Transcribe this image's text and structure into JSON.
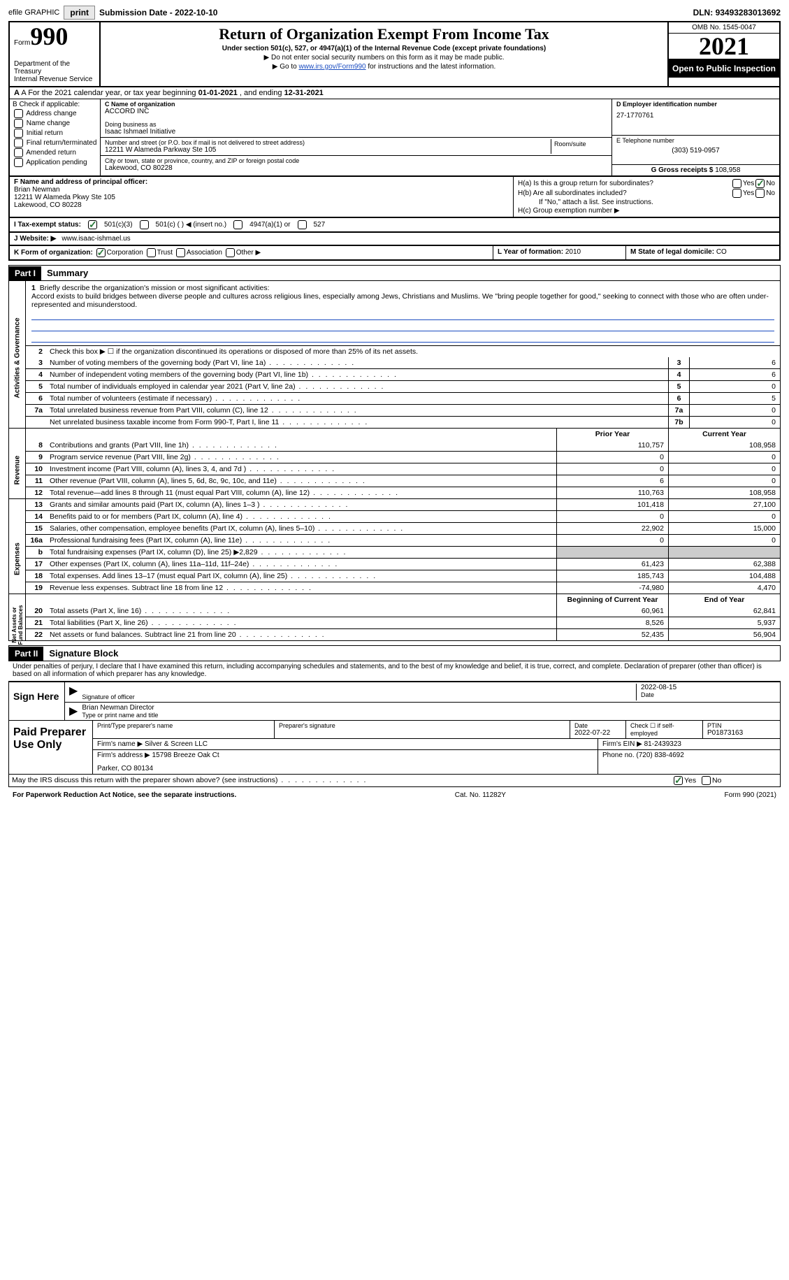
{
  "topbar": {
    "efile": "efile GRAPHIC",
    "print": "print",
    "sub_date_lbl": "Submission Date - ",
    "sub_date": "2022-10-10",
    "dln_lbl": "DLN: ",
    "dln": "93493283013692"
  },
  "header": {
    "form_lbl": "Form",
    "form_num": "990",
    "dept": "Department of the Treasury\nInternal Revenue Service",
    "title": "Return of Organization Exempt From Income Tax",
    "subtitle": "Under section 501(c), 527, or 4947(a)(1) of the Internal Revenue Code (except private foundations)",
    "note1": "▶ Do not enter social security numbers on this form as it may be made public.",
    "note2_pre": "▶ Go to ",
    "note2_link": "www.irs.gov/Form990",
    "note2_post": " for instructions and the latest information.",
    "omb": "OMB No. 1545-0047",
    "year": "2021",
    "open": "Open to Public Inspection"
  },
  "rowA": {
    "text_pre": "A For the 2021 calendar year, or tax year beginning ",
    "begin": "01-01-2021",
    "mid": "  , and ending ",
    "end": "12-31-2021"
  },
  "colB": {
    "hdr": "B Check if applicable:",
    "opts": [
      "Address change",
      "Name change",
      "Initial return",
      "Final return/terminated",
      "Amended return",
      "Application pending"
    ]
  },
  "colC": {
    "name_lbl": "C Name of organization",
    "name": "ACCORD INC",
    "dba_lbl": "Doing business as",
    "dba": "Isaac Ishmael Initiative",
    "street_lbl": "Number and street (or P.O. box if mail is not delivered to street address)",
    "room_lbl": "Room/suite",
    "street": "12211 W Alameda Parkway Ste 105",
    "city_lbl": "City or town, state or province, country, and ZIP or foreign postal code",
    "city": "Lakewood, CO  80228"
  },
  "colD": {
    "ein_lbl": "D Employer identification number",
    "ein": "27-1770761",
    "tel_lbl": "E Telephone number",
    "tel": "(303) 519-0957",
    "gross_lbl": "G Gross receipts $ ",
    "gross": "108,958"
  },
  "colF": {
    "lbl": "F Name and address of principal officer:",
    "name": "Brian Newman",
    "addr1": "12211 W Alameda Pkwy Ste 105",
    "addr2": "Lakewood, CO  80228"
  },
  "colH": {
    "ha": "H(a)  Is this a group return for subordinates?",
    "ha_no": true,
    "hb": "H(b)  Are all subordinates included?",
    "hb_note": "If \"No,\" attach a list. See instructions.",
    "hc": "H(c)  Group exemption number ▶"
  },
  "rowI": {
    "lbl": "I   Tax-exempt status:",
    "o501c3": "501(c)(3)",
    "o501c": "501(c) (  ) ◀ (insert no.)",
    "o4947": "4947(a)(1) or",
    "o527": "527"
  },
  "rowJ": {
    "lbl": "J   Website: ▶  ",
    "val": "www.isaac-ishmael.us"
  },
  "rowK": {
    "lbl": "K Form of organization:",
    "corp": "Corporation",
    "trust": "Trust",
    "assoc": "Association",
    "other": "Other ▶"
  },
  "rowL": {
    "lbl": "L Year of formation: ",
    "val": "2010"
  },
  "rowM": {
    "lbl": "M State of legal domicile: ",
    "val": "CO"
  },
  "part1": {
    "hdr": "Part I",
    "title": "Summary"
  },
  "mission": {
    "num": "1",
    "lbl": "Briefly describe the organization's mission or most significant activities:",
    "text": "Accord exists to build bridges between diverse people and cultures across religious lines, especially among Jews, Christians and Muslims. We \"bring people together for good,\" seeking to connect with those who are often under-represented and misunderstood."
  },
  "line2": {
    "num": "2",
    "text": "Check this box ▶ ☐  if the organization discontinued its operations or disposed of more than 25% of its net assets."
  },
  "govLines": [
    {
      "n": "3",
      "d": "Number of voting members of the governing body (Part VI, line 1a)",
      "b": "3",
      "v": "6"
    },
    {
      "n": "4",
      "d": "Number of independent voting members of the governing body (Part VI, line 1b)",
      "b": "4",
      "v": "6"
    },
    {
      "n": "5",
      "d": "Total number of individuals employed in calendar year 2021 (Part V, line 2a)",
      "b": "5",
      "v": "0"
    },
    {
      "n": "6",
      "d": "Total number of volunteers (estimate if necessary)",
      "b": "6",
      "v": "5"
    },
    {
      "n": "7a",
      "d": "Total unrelated business revenue from Part VIII, column (C), line 12",
      "b": "7a",
      "v": "0"
    },
    {
      "n": "",
      "d": "Net unrelated business taxable income from Form 990-T, Part I, line 11",
      "b": "7b",
      "v": "0"
    }
  ],
  "twoColHdr": {
    "prior": "Prior Year",
    "current": "Current Year"
  },
  "revenue": [
    {
      "n": "8",
      "d": "Contributions and grants (Part VIII, line 1h)",
      "p": "110,757",
      "c": "108,958"
    },
    {
      "n": "9",
      "d": "Program service revenue (Part VIII, line 2g)",
      "p": "0",
      "c": "0"
    },
    {
      "n": "10",
      "d": "Investment income (Part VIII, column (A), lines 3, 4, and 7d )",
      "p": "0",
      "c": "0"
    },
    {
      "n": "11",
      "d": "Other revenue (Part VIII, column (A), lines 5, 6d, 8c, 9c, 10c, and 11e)",
      "p": "6",
      "c": "0"
    },
    {
      "n": "12",
      "d": "Total revenue—add lines 8 through 11 (must equal Part VIII, column (A), line 12)",
      "p": "110,763",
      "c": "108,958"
    }
  ],
  "expenses": [
    {
      "n": "13",
      "d": "Grants and similar amounts paid (Part IX, column (A), lines 1–3 )",
      "p": "101,418",
      "c": "27,100"
    },
    {
      "n": "14",
      "d": "Benefits paid to or for members (Part IX, column (A), line 4)",
      "p": "0",
      "c": "0"
    },
    {
      "n": "15",
      "d": "Salaries, other compensation, employee benefits (Part IX, column (A), lines 5–10)",
      "p": "22,902",
      "c": "15,000"
    },
    {
      "n": "16a",
      "d": "Professional fundraising fees (Part IX, column (A), line 11e)",
      "p": "0",
      "c": "0"
    },
    {
      "n": "b",
      "d": "Total fundraising expenses (Part IX, column (D), line 25) ▶2,829",
      "p": "",
      "c": "",
      "shade": true
    },
    {
      "n": "17",
      "d": "Other expenses (Part IX, column (A), lines 11a–11d, 11f–24e)",
      "p": "61,423",
      "c": "62,388"
    },
    {
      "n": "18",
      "d": "Total expenses. Add lines 13–17 (must equal Part IX, column (A), line 25)",
      "p": "185,743",
      "c": "104,488"
    },
    {
      "n": "19",
      "d": "Revenue less expenses. Subtract line 18 from line 12",
      "p": "-74,980",
      "c": "4,470"
    }
  ],
  "netHdr": {
    "begin": "Beginning of Current Year",
    "end": "End of Year"
  },
  "netassets": [
    {
      "n": "20",
      "d": "Total assets (Part X, line 16)",
      "p": "60,961",
      "c": "62,841"
    },
    {
      "n": "21",
      "d": "Total liabilities (Part X, line 26)",
      "p": "8,526",
      "c": "5,937"
    },
    {
      "n": "22",
      "d": "Net assets or fund balances. Subtract line 21 from line 20",
      "p": "52,435",
      "c": "56,904"
    }
  ],
  "part2": {
    "hdr": "Part II",
    "title": "Signature Block",
    "decl": "Under penalties of perjury, I declare that I have examined this return, including accompanying schedules and statements, and to the best of my knowledge and belief, it is true, correct, and complete. Declaration of preparer (other than officer) is based on all information of which preparer has any knowledge."
  },
  "sign": {
    "here": "Sign Here",
    "sig_lbl": "Signature of officer",
    "date_lbl": "Date",
    "date": "2022-08-15",
    "name": "Brian Newman  Director",
    "name_lbl": "Type or print name and title"
  },
  "prep": {
    "use": "Paid Preparer Use Only",
    "name_lbl": "Print/Type preparer's name",
    "sig_lbl": "Preparer's signature",
    "date_lbl": "Date",
    "date": "2022-07-22",
    "check_lbl": "Check ☐ if self-employed",
    "ptin_lbl": "PTIN",
    "ptin": "P01873163",
    "firm_lbl": "Firm's name    ▶ ",
    "firm": "Silver & Screen LLC",
    "ein_lbl": "Firm's EIN ▶ ",
    "ein": "81-2439323",
    "addr_lbl": "Firm's address ▶ ",
    "addr": "15798 Breeze Oak Ct",
    "addr2": "Parker, CO  80134",
    "phone_lbl": "Phone no. ",
    "phone": "(720) 838-4692"
  },
  "discuss": {
    "text": "May the IRS discuss this return with the preparer shown above? (see instructions)",
    "yes": true
  },
  "footer": {
    "left": "For Paperwork Reduction Act Notice, see the separate instructions.",
    "mid": "Cat. No. 11282Y",
    "right": "Form 990 (2021)"
  }
}
